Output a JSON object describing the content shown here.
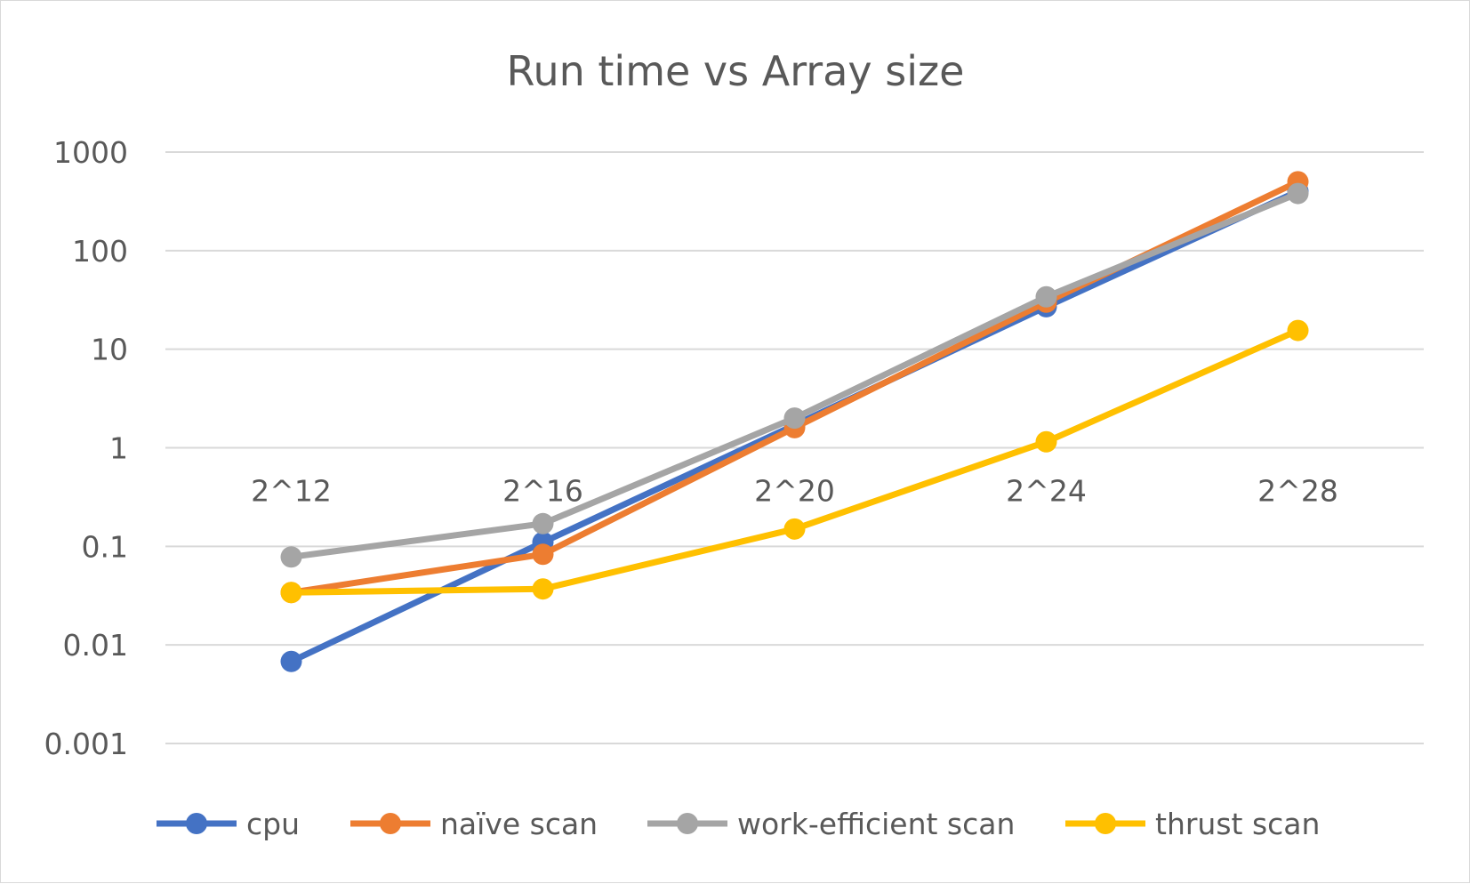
{
  "chart_data": {
    "type": "line",
    "title": "Run time vs Array size",
    "xlabel": "",
    "ylabel": "",
    "categories": [
      "2^12",
      "2^16",
      "2^20",
      "2^24",
      "2^28"
    ],
    "y_scale": "log",
    "ylim": [
      0.001,
      1000
    ],
    "y_ticks": [
      {
        "value": 1000,
        "label": "1000"
      },
      {
        "value": 100,
        "label": "100"
      },
      {
        "value": 10,
        "label": "10"
      },
      {
        "value": 1,
        "label": "1"
      },
      {
        "value": 0.1,
        "label": "0.1"
      },
      {
        "value": 0.01,
        "label": "0.01"
      },
      {
        "value": 0.001,
        "label": "0.001"
      }
    ],
    "x_axis_crosses_at": 1,
    "grid": true,
    "legend_position": "bottom",
    "series": [
      {
        "name": "cpu",
        "color": "#4472C4",
        "values": [
          0.0068,
          0.11,
          1.7,
          27,
          400
        ]
      },
      {
        "name": "naïve scan",
        "color": "#ED7D31",
        "values": [
          0.034,
          0.083,
          1.6,
          30,
          500
        ]
      },
      {
        "name": "work-efficient scan",
        "color": "#A5A5A5",
        "values": [
          0.078,
          0.17,
          2.0,
          34,
          380
        ]
      },
      {
        "name": "thrust scan",
        "color": "#FFC000",
        "values": [
          0.034,
          0.037,
          0.15,
          1.15,
          15.5
        ]
      }
    ]
  }
}
